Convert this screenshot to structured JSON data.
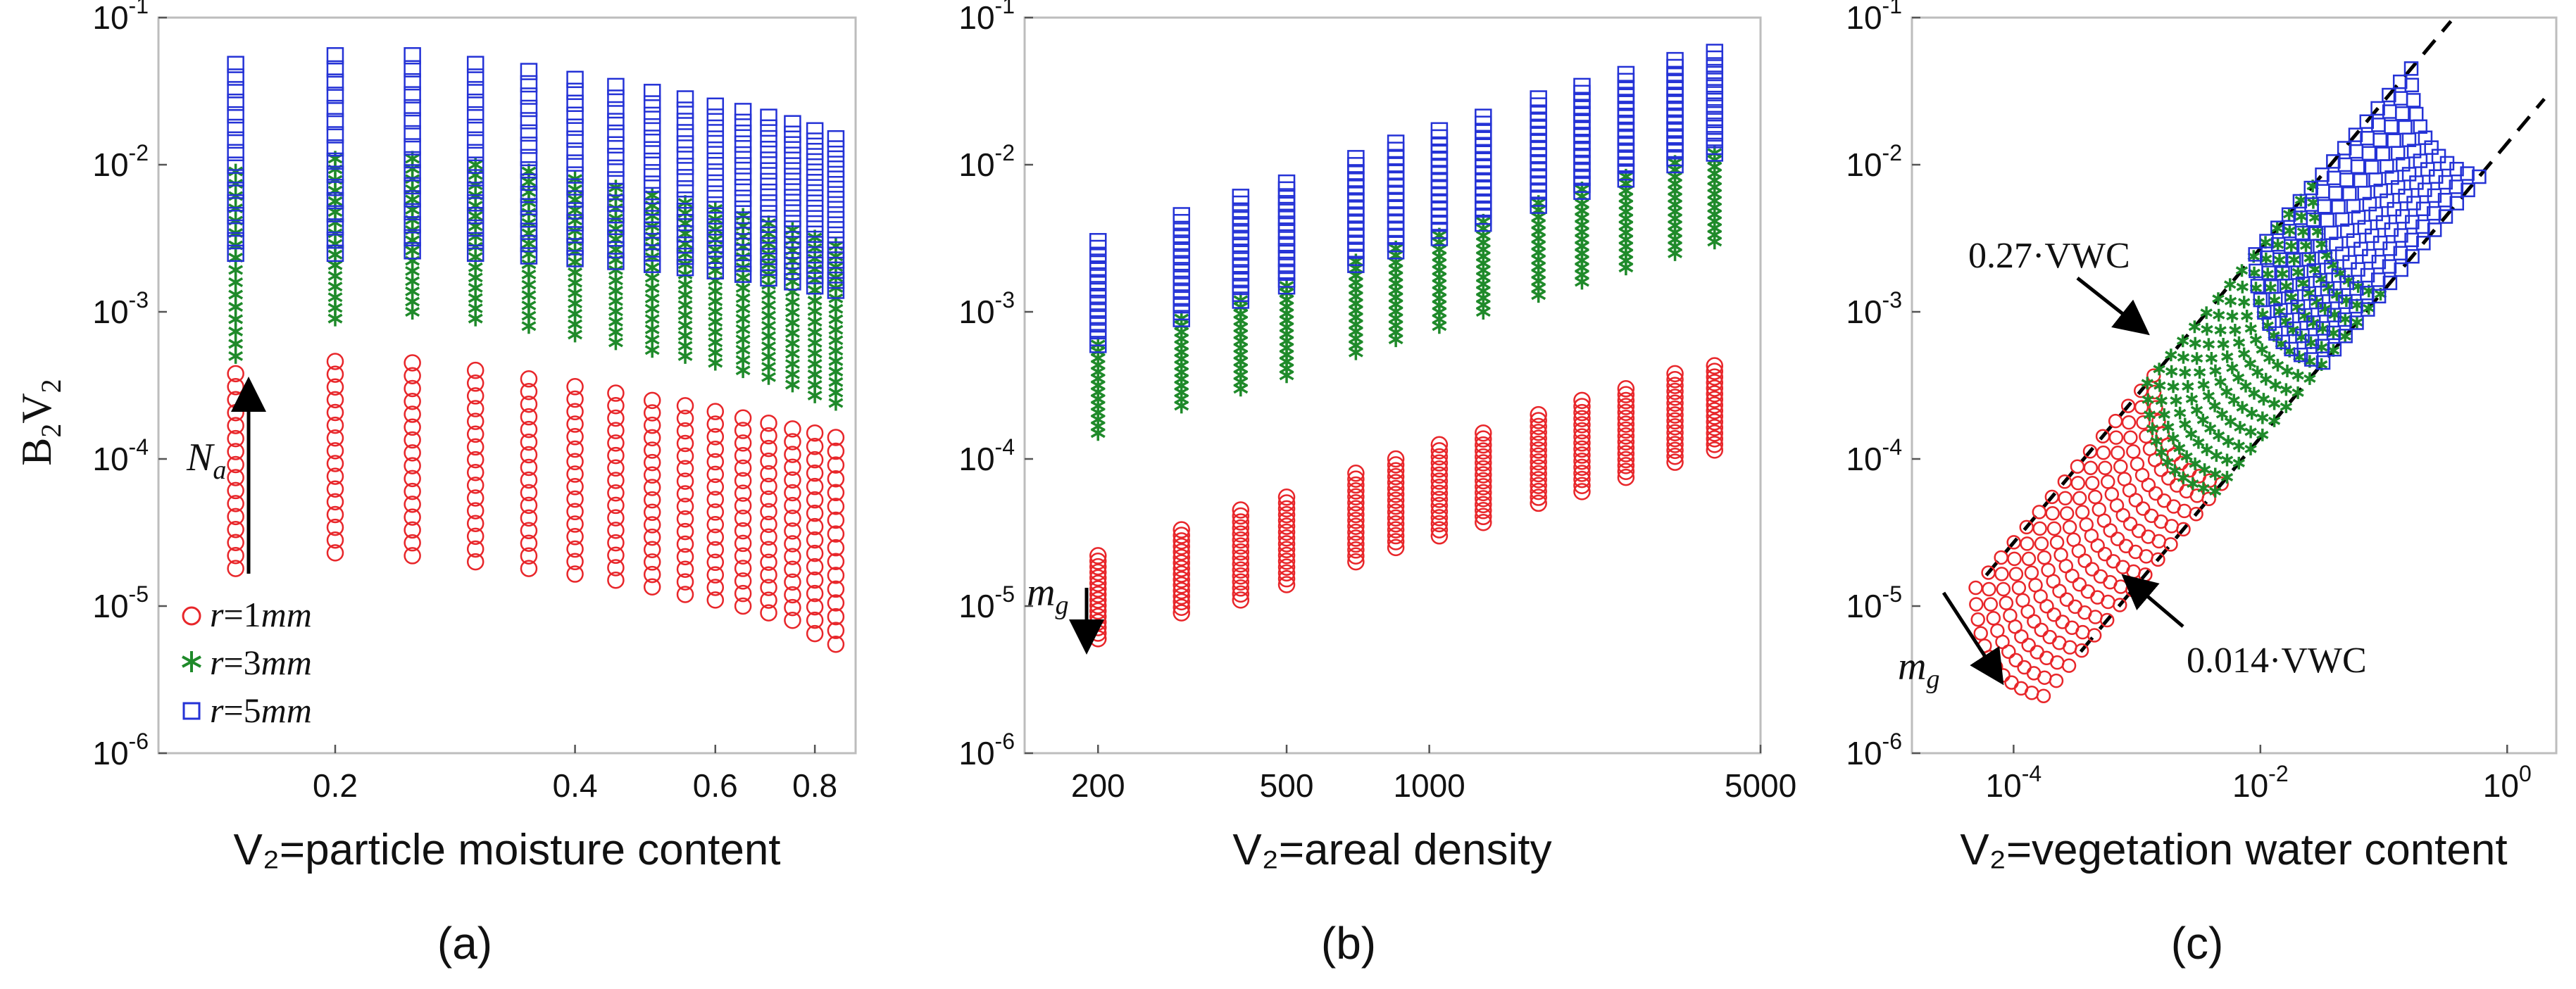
{
  "y_axis_label": {
    "main": "B",
    "sub1": "2",
    "mid": "V",
    "sub2": "2"
  },
  "legend": [
    {
      "name": "r = 1mm",
      "prefix": "r",
      "value": "=1",
      "unit": "mm",
      "marker": "circle",
      "color": "#e8262a"
    },
    {
      "name": "r = 3mm",
      "prefix": "r",
      "value": "=3",
      "unit": "mm",
      "marker": "asterisk",
      "color": "#1f8a2a"
    },
    {
      "name": "r = 5mm",
      "prefix": "r",
      "value": "=5",
      "unit": "mm",
      "marker": "square",
      "color": "#2432d6"
    }
  ],
  "annotations": {
    "Na": {
      "base": "N",
      "sub": "a"
    },
    "mg_b": {
      "base": "m",
      "sub": "g"
    },
    "mg_c": {
      "base": "m",
      "sub": "g"
    },
    "upper_line": "0.27·VWC",
    "lower_line": "0.014·VWC"
  },
  "panel_captions": [
    "(a)",
    "(b)",
    "(c)"
  ],
  "chart_data": [
    {
      "panel": "a",
      "type": "scatter",
      "xscale": "log",
      "yscale": "log",
      "xlim": [
        0.12,
        0.9
      ],
      "ylim": [
        1e-06,
        0.1
      ],
      "xlabel": "V₂=particle moisture content",
      "ylabel": "B₂V₂",
      "xticks": [
        0.2,
        0.4,
        0.6,
        0.8
      ],
      "xtick_labels": [
        "0.2",
        "0.4",
        "0.6",
        "0.8"
      ],
      "yticks": [
        -6,
        -5,
        -4,
        -3,
        -2,
        -1
      ],
      "ytick_labels": [
        "10",
        "10",
        "10",
        "10",
        "10",
        "10"
      ],
      "ytick_exps": [
        "-6",
        "-5",
        "-4",
        "-3",
        "-2",
        "-1"
      ],
      "x": [
        0.15,
        0.2,
        0.25,
        0.3,
        0.35,
        0.4,
        0.45,
        0.5,
        0.55,
        0.6,
        0.65,
        0.7,
        0.75,
        0.8,
        0.85
      ],
      "series": [
        {
          "name": "r = 1mm",
          "marker": "circle",
          "ymin": [
            1.8e-05,
            2.3e-05,
            2.2e-05,
            2e-05,
            1.8e-05,
            1.65e-05,
            1.5e-05,
            1.35e-05,
            1.2e-05,
            1.1e-05,
            1e-05,
            9e-06,
            8e-06,
            6.5e-06,
            5.5e-06
          ],
          "ymax": [
            0.00038,
            0.00046,
            0.00045,
            0.0004,
            0.00035,
            0.00031,
            0.00028,
            0.00025,
            0.00023,
            0.00021,
            0.00019,
            0.000175,
            0.00016,
            0.00015,
            0.00014
          ],
          "n": 16
        },
        {
          "name": "r = 3mm",
          "marker": "asterisk",
          "ymin": [
            0.0005,
            0.0009,
            0.001,
            0.0009,
            0.0008,
            0.0007,
            0.00062,
            0.00055,
            0.0005,
            0.00045,
            0.0004,
            0.00036,
            0.00032,
            0.00027,
            0.00024
          ],
          "ymax": [
            0.009,
            0.011,
            0.011,
            0.01,
            0.009,
            0.008,
            0.007,
            0.0062,
            0.0055,
            0.005,
            0.0045,
            0.004,
            0.0036,
            0.0032,
            0.0028
          ],
          "n": 16
        },
        {
          "name": "r = 5mm",
          "marker": "square",
          "ymin": [
            0.0025,
            0.0025,
            0.0026,
            0.0025,
            0.0024,
            0.0023,
            0.0022,
            0.0021,
            0.002,
            0.0019,
            0.0018,
            0.0017,
            0.0016,
            0.0015,
            0.0014
          ],
          "ymax": [
            0.048,
            0.055,
            0.055,
            0.048,
            0.043,
            0.038,
            0.034,
            0.031,
            0.028,
            0.025,
            0.023,
            0.021,
            0.019,
            0.017,
            0.015
          ],
          "n": 16
        }
      ]
    },
    {
      "panel": "b",
      "type": "scatter",
      "xscale": "log",
      "yscale": "log",
      "xlim": [
        140,
        5000
      ],
      "ylim": [
        1e-06,
        0.1
      ],
      "xlabel": "V₂=areal density",
      "xticks": [
        200,
        500,
        1000,
        5000
      ],
      "xtick_labels": [
        "200",
        "500",
        "1000",
        "5000"
      ],
      "yticks": [
        -6,
        -5,
        -4,
        -3,
        -2,
        -1
      ],
      "ytick_labels": [
        "10",
        "10",
        "10",
        "10",
        "10",
        "10"
      ],
      "ytick_exps": [
        "-6",
        "-5",
        "-4",
        "-3",
        "-2",
        "-1"
      ],
      "x": [
        200,
        300,
        400,
        500,
        700,
        850,
        1050,
        1300,
        1700,
        2100,
        2600,
        3300,
        4000
      ],
      "series": [
        {
          "name": "r = 1mm",
          "marker": "circle",
          "ymin": [
            6e-06,
            9e-06,
            1.1e-05,
            1.4e-05,
            2e-05,
            2.5e-05,
            3e-05,
            3.7e-05,
            5e-05,
            6e-05,
            7.5e-05,
            9.5e-05,
            0.000115
          ],
          "ymax": [
            2.2e-05,
            3.3e-05,
            4.5e-05,
            5.5e-05,
            8e-05,
            0.0001,
            0.000125,
            0.00015,
            0.0002,
            0.00025,
            0.0003,
            0.00038,
            0.00043
          ],
          "n": 16
        },
        {
          "name": "r = 3mm",
          "marker": "asterisk",
          "ymin": [
            0.00015,
            0.00023,
            0.0003,
            0.00037,
            0.00053,
            0.00065,
            0.0008,
            0.001,
            0.0013,
            0.0016,
            0.002,
            0.0025,
            0.003
          ],
          "ymax": [
            0.0006,
            0.0009,
            0.0012,
            0.0015,
            0.0022,
            0.0027,
            0.0033,
            0.0041,
            0.0055,
            0.0068,
            0.0083,
            0.0103,
            0.012
          ],
          "n": 14
        },
        {
          "name": "r = 5mm",
          "marker": "square",
          "ymin": [
            0.0006,
            0.0009,
            0.0012,
            0.0015,
            0.0021,
            0.0026,
            0.0032,
            0.004,
            0.0053,
            0.0066,
            0.008,
            0.01,
            0.012
          ],
          "ymax": [
            0.003,
            0.0045,
            0.006,
            0.0075,
            0.011,
            0.014,
            0.017,
            0.021,
            0.028,
            0.034,
            0.041,
            0.051,
            0.058
          ],
          "n": 16
        }
      ]
    },
    {
      "panel": "c",
      "type": "scatter",
      "xscale": "log",
      "yscale": "log",
      "xlim": [
        1.5e-05,
        2.5
      ],
      "ylim": [
        1e-06,
        0.1
      ],
      "xlabel": "V₂=vegetation water content",
      "xticks": [
        -4,
        -2,
        0
      ],
      "xtick_labels": [
        "10",
        "10",
        "10"
      ],
      "xtick_exps": [
        "-4",
        "-2",
        "0"
      ],
      "yticks": [
        -6,
        -5,
        -4,
        -3,
        -2,
        -1
      ],
      "ytick_labels": [
        "10",
        "10",
        "10",
        "10",
        "10",
        "10"
      ],
      "ytick_exps": [
        "-6",
        "-5",
        "-4",
        "-3",
        "-2",
        "-1"
      ],
      "reference_lines": [
        {
          "name": "0.27·VWC",
          "coef": 0.27
        },
        {
          "name": "0.014·VWC",
          "coef": 0.014
        }
      ],
      "series": [
        {
          "name": "r = 1mm",
          "marker": "circle",
          "vwc_min": 6.5e-05,
          "vwc_max": 0.0018,
          "ymin_coef": 0.014,
          "ymax_coef": 0.27
        },
        {
          "name": "r = 3mm",
          "marker": "asterisk",
          "vwc_min": 0.0016,
          "vwc_max": 0.035,
          "ymin_coef": 0.014,
          "ymax_coef": 0.27
        },
        {
          "name": "r = 5mm",
          "marker": "square",
          "vwc_min": 0.012,
          "vwc_max": 0.22,
          "ymin_coef": 0.014,
          "ymax_coef": 0.27
        }
      ]
    }
  ]
}
